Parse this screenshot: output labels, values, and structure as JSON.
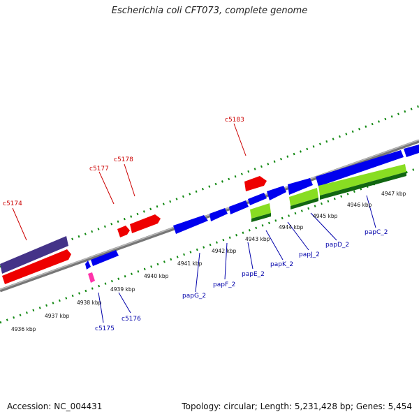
{
  "title": "Escherichia coli CFT073, complete genome",
  "footer": {
    "accession": "Accession: NC_004431",
    "summary": "Topology: circular; Length: 5,231,428 bp; Genes: 5,454"
  },
  "colors": {
    "forward_cds": "#0000ee",
    "reverse_cds": "#ee0000",
    "gene_bar": "#443388",
    "rna_green": "#88dd22",
    "misc_pink": "#ff33aa",
    "label_forward": "#cc0000",
    "label_reverse": "#0000aa",
    "tick": "#118811"
  },
  "scale_labels": [
    "4936 kbp",
    "4937 kbp",
    "4938 kbp",
    "4939 kbp",
    "4940 kbp",
    "4941 kbp",
    "4942 kbp",
    "4943 kbp",
    "4944 kbp",
    "4945 kbp",
    "4946 kbp",
    "4947 kbp"
  ],
  "gene_labels": {
    "c5174": "c5174",
    "c5177": "c5177",
    "c5178": "c5178",
    "c5183": "c5183",
    "c5175": "c5175",
    "c5176": "c5176",
    "papG_2": "papG_2",
    "papF_2": "papF_2",
    "papE_2": "papE_2",
    "papK_2": "papK_2",
    "papJ_2": "papJ_2",
    "papD_2": "papD_2",
    "papC_2": "papC_2"
  }
}
